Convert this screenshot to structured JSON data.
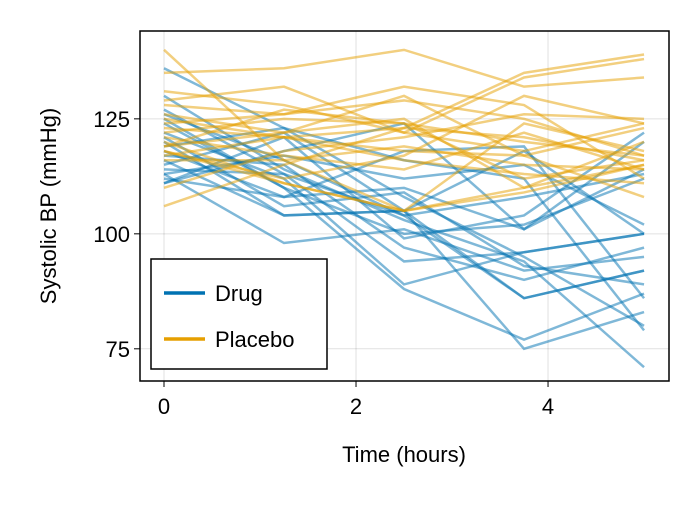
{
  "chart_data": {
    "type": "line",
    "xlabel": "Time (hours)",
    "ylabel": "Systolic BP (mmHg)",
    "xlim": [
      -0.25,
      5.26
    ],
    "ylim": [
      68,
      144.1
    ],
    "xticks": [
      0,
      2,
      4
    ],
    "yticks": [
      75,
      100,
      125
    ],
    "grid": true,
    "legend_position": "bottom-left",
    "x": [
      0,
      1.25,
      2.5,
      3.75,
      5
    ],
    "groups": [
      {
        "name": "Drug",
        "color": "#0072B2",
        "subjects": [
          [
            136,
            123,
            108,
            95,
            80
          ],
          [
            126,
            116,
            104,
            86,
            92
          ],
          [
            124,
            110,
            100,
            102,
            112
          ],
          [
            122,
            112,
            89,
            96,
            100
          ],
          [
            120,
            104,
            105,
            118,
            100
          ],
          [
            118,
            108,
            110,
            101,
            120
          ],
          [
            117,
            115,
            97,
            90,
            97
          ],
          [
            116,
            104,
            105,
            75,
            83
          ],
          [
            115,
            122,
            105,
            86,
            92
          ],
          [
            114,
            113,
            104,
            108,
            113
          ],
          [
            113,
            98,
            101,
            92,
            95
          ],
          [
            112,
            108,
            118,
            119,
            86
          ],
          [
            111,
            118,
            124,
            101,
            114
          ],
          [
            111,
            121,
            99,
            104,
            122
          ],
          [
            125,
            110,
            88,
            77,
            87
          ],
          [
            130,
            114,
            103,
            94,
            71
          ],
          [
            121,
            106,
            109,
            93,
            89
          ],
          [
            119,
            123,
            116,
            112,
            79
          ],
          [
            113,
            117,
            112,
            115,
            102
          ],
          [
            127,
            113,
            94,
            96,
            100
          ]
        ]
      },
      {
        "name": "Placebo",
        "color": "#E69F00",
        "subjects": [
          [
            140,
            116,
            105,
            124,
            118
          ],
          [
            135,
            136,
            140,
            132,
            134
          ],
          [
            131,
            128,
            122,
            134,
            138
          ],
          [
            129,
            132,
            122,
            118,
            124
          ],
          [
            128,
            126,
            132,
            128,
            112
          ],
          [
            126,
            122,
            125,
            110,
            115
          ],
          [
            124,
            126,
            129,
            125,
            117
          ],
          [
            123,
            121,
            123,
            135,
            139
          ],
          [
            122,
            125,
            124,
            112,
            116
          ],
          [
            121,
            117,
            114,
            122,
            114
          ],
          [
            120,
            111,
            105,
            110,
            120
          ],
          [
            119,
            122,
            130,
            117,
            108
          ],
          [
            118,
            111,
            105,
            109,
            115
          ],
          [
            117,
            121,
            118,
            117,
            123
          ],
          [
            116,
            116,
            119,
            115,
            114
          ],
          [
            110,
            118,
            121,
            126,
            125
          ],
          [
            106,
            115,
            123,
            121,
            116
          ],
          [
            119,
            127,
            124,
            120,
            117
          ],
          [
            125,
            121,
            116,
            113,
            111
          ],
          [
            118,
            112,
            117,
            130,
            124
          ]
        ]
      }
    ]
  }
}
